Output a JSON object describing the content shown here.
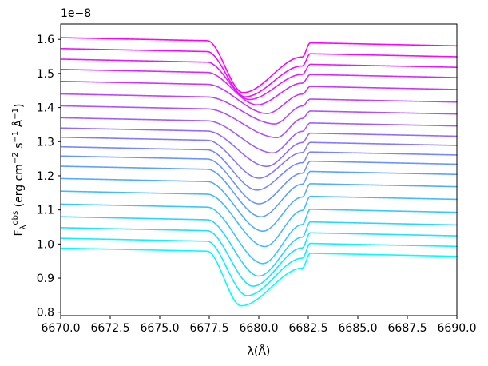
{
  "chart_data": {
    "type": "line",
    "xlabel": "λ(Å)",
    "ylabel": "F_λ^obs (erg cm^-2 s^-1 Å^-1)",
    "ylabel_parts": {
      "symbol": "F",
      "subscript": "λ",
      "superscript": "obs",
      "units_open": "(erg cm",
      "exp1": "−2",
      "units_mid": " s",
      "exp2": "−1",
      "units_angstrom": " Å",
      "exp3": "−1",
      "units_close": ")"
    },
    "y_offset_label": "1e−8",
    "xlim": [
      6670.0,
      6690.0
    ],
    "ylim": [
      0.79,
      1.645
    ],
    "y_scale_exponent": -8,
    "x_ticks": [
      "6670.0",
      "6672.5",
      "6675.0",
      "6677.5",
      "6680.0",
      "6682.5",
      "6685.0",
      "6687.5",
      "6690.0"
    ],
    "y_ticks": [
      "0.8",
      "0.9",
      "1.0",
      "1.1",
      "1.2",
      "1.3",
      "1.4",
      "1.5",
      "1.6"
    ],
    "x_tick_values": [
      6670.0,
      6672.5,
      6675.0,
      6677.5,
      6680.0,
      6682.5,
      6685.0,
      6687.5,
      6690.0
    ],
    "y_tick_values": [
      0.8,
      0.9,
      1.0,
      1.1,
      1.2,
      1.3,
      1.4,
      1.5,
      1.6
    ],
    "grid": false,
    "legend": "none",
    "colormap": "cool",
    "color_start": "#00ffff",
    "color_end": "#ff00ff",
    "series": [
      {
        "continuum": 0.988,
        "min": 0.83,
        "min_x": 6679.1
      },
      {
        "continuum": 1.017,
        "min": 0.86,
        "min_x": 6679.4
      },
      {
        "continuum": 1.048,
        "min": 0.888,
        "min_x": 6679.7
      },
      {
        "continuum": 1.08,
        "min": 0.918,
        "min_x": 6680.0
      },
      {
        "continuum": 1.117,
        "min": 0.955,
        "min_x": 6680.2
      },
      {
        "continuum": 1.155,
        "min": 1.005,
        "min_x": 6680.3
      },
      {
        "continuum": 1.192,
        "min": 1.05,
        "min_x": 6680.2
      },
      {
        "continuum": 1.228,
        "min": 1.092,
        "min_x": 6680.1
      },
      {
        "continuum": 1.258,
        "min": 1.13,
        "min_x": 6680.0
      },
      {
        "continuum": 1.285,
        "min": 1.17,
        "min_x": 6679.9
      },
      {
        "continuum": 1.313,
        "min": 1.205,
        "min_x": 6680.0
      },
      {
        "continuum": 1.34,
        "min": 1.24,
        "min_x": 6680.4
      },
      {
        "continuum": 1.37,
        "min": 1.28,
        "min_x": 6680.7
      },
      {
        "continuum": 1.405,
        "min": 1.325,
        "min_x": 6680.9
      },
      {
        "continuum": 1.44,
        "min": 1.365,
        "min_x": 6680.8
      },
      {
        "continuum": 1.477,
        "min": 1.395,
        "min_x": 6680.4
      },
      {
        "continuum": 1.512,
        "min": 1.42,
        "min_x": 6679.9
      },
      {
        "continuum": 1.542,
        "min": 1.435,
        "min_x": 6679.5
      },
      {
        "continuum": 1.573,
        "min": 1.443,
        "min_x": 6679.3
      },
      {
        "continuum": 1.605,
        "min": 1.455,
        "min_x": 6679.2
      }
    ]
  }
}
